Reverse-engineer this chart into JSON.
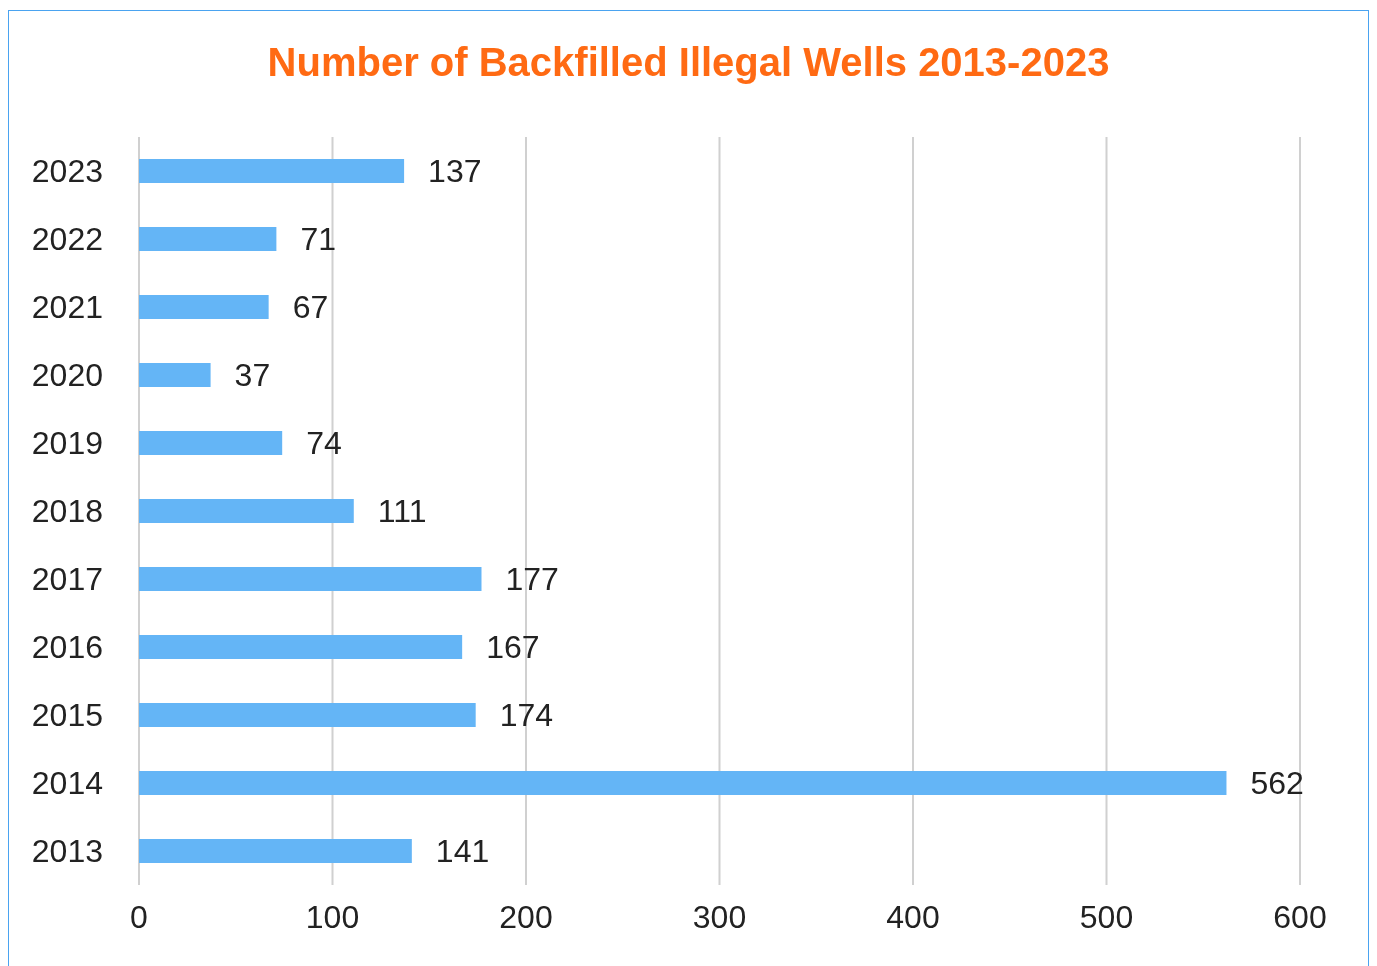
{
  "chart_data": {
    "type": "bar",
    "orientation": "horizontal",
    "title": "Number of Backfilled Illegal Wells 2013-2023",
    "categories": [
      "2023",
      "2022",
      "2021",
      "2020",
      "2019",
      "2018",
      "2017",
      "2016",
      "2015",
      "2014",
      "2013"
    ],
    "values": [
      137,
      71,
      67,
      37,
      74,
      111,
      177,
      167,
      174,
      562,
      141
    ],
    "color": "#64b5f6",
    "xlim": [
      0,
      600
    ],
    "xticks": [
      0,
      100,
      200,
      300,
      400,
      500,
      600
    ],
    "grid": "x",
    "data_labels": true
  }
}
